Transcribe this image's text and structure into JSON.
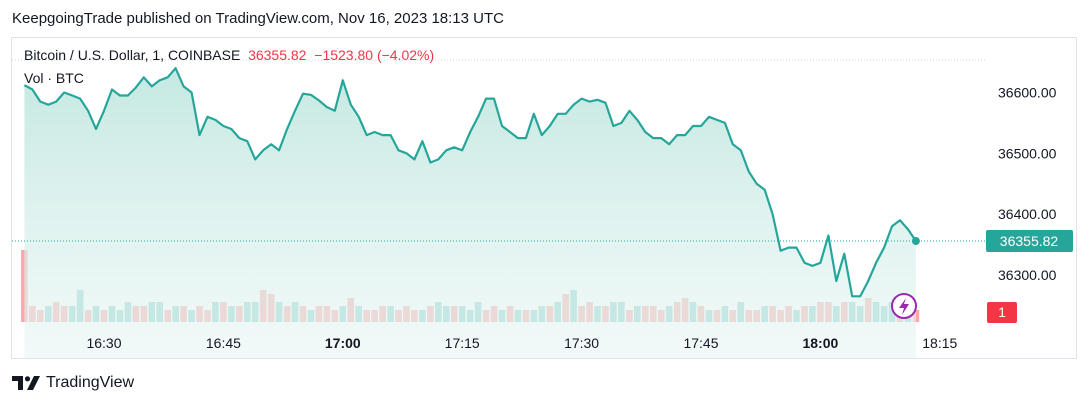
{
  "header": {
    "published_text": "KeepgoingTrade published on TradingView.com, Nov 16, 2023 18:13 UTC"
  },
  "legend": {
    "symbol": "Bitcoin / U.S. Dollar, 1, COINBASE",
    "last": "36355.82",
    "change": "−1523.80 (−4.02%)",
    "volume_label": "Vol · BTC"
  },
  "footer": {
    "brand": "TradingView",
    "logo_icon": "tradingview-logo-icon"
  },
  "badges": {
    "price_label": "36355.82",
    "volume_label": "1",
    "lightning_icon": "lightning-icon"
  },
  "colors": {
    "line": "#26a69a",
    "area_top": "#cdebe6",
    "up_volume": "#26a69a",
    "down_volume": "#ef5350",
    "badge_red": "#f23645"
  },
  "chart_data": {
    "type": "area",
    "title": "Bitcoin / U.S. Dollar, 1, COINBASE",
    "xlabel": "",
    "ylabel": "",
    "x_ticks": [
      {
        "label": "16:30",
        "t": 1.0
      },
      {
        "label": "16:45",
        "t": 16.0
      },
      {
        "label": "17:00",
        "t": 31.0,
        "bold": true
      },
      {
        "label": "17:15",
        "t": 46.0
      },
      {
        "label": "17:30",
        "t": 61.0
      },
      {
        "label": "17:45",
        "t": 76.0
      },
      {
        "label": "18:00",
        "t": 91.0,
        "bold": true
      },
      {
        "label": "18:15",
        "t": 106.0
      }
    ],
    "y_ticks": [
      36600,
      36500,
      36400,
      36300
    ],
    "ylim": [
      36225,
      36740
    ],
    "grid": false,
    "last_value": 36355.82,
    "x": [
      -9,
      -8,
      -7,
      -6,
      -5,
      -4,
      -3,
      -2,
      -1,
      0,
      1,
      2,
      3,
      4,
      5,
      6,
      7,
      8,
      9,
      10,
      11,
      12,
      13,
      14,
      15,
      16,
      17,
      18,
      19,
      20,
      21,
      22,
      23,
      24,
      25,
      26,
      27,
      28,
      29,
      30,
      31,
      32,
      33,
      34,
      35,
      36,
      37,
      38,
      39,
      40,
      41,
      42,
      43,
      44,
      45,
      46,
      47,
      48,
      49,
      50,
      51,
      52,
      53,
      54,
      55,
      56,
      57,
      58,
      59,
      60,
      61,
      62,
      63,
      64,
      65,
      66,
      67,
      68,
      69,
      70,
      71,
      72,
      73,
      74,
      75,
      76,
      77,
      78,
      79,
      80,
      81,
      82,
      83,
      84,
      85,
      86,
      87,
      88,
      89,
      90,
      91,
      92,
      93,
      94,
      95,
      96,
      97,
      98,
      99,
      100,
      101,
      102,
      103
    ],
    "values": [
      36612,
      36605,
      36585,
      36580,
      36585,
      36600,
      36595,
      36590,
      36570,
      36540,
      36570,
      36605,
      36595,
      36595,
      36608,
      36625,
      36610,
      36620,
      36625,
      36640,
      36610,
      36600,
      36530,
      36560,
      36555,
      36545,
      36540,
      36525,
      36520,
      36490,
      36505,
      36515,
      36505,
      36540,
      36570,
      36598,
      36596,
      36587,
      36576,
      36570,
      36620,
      36580,
      36560,
      36530,
      36535,
      36530,
      36530,
      36505,
      36500,
      36490,
      36520,
      36485,
      36490,
      36505,
      36510,
      36505,
      36535,
      36560,
      36590,
      36590,
      36545,
      36535,
      36525,
      36525,
      36565,
      36530,
      36545,
      36565,
      36565,
      36580,
      36590,
      36585,
      36588,
      36583,
      36545,
      36550,
      36570,
      36555,
      36535,
      36525,
      36525,
      36515,
      36530,
      36530,
      36545,
      36545,
      36560,
      36555,
      36550,
      36515,
      36505,
      36470,
      36450,
      36440,
      36400,
      36340,
      36345,
      36345,
      36320,
      36315,
      36320,
      36365,
      36290,
      36335,
      36265,
      36265,
      36290,
      36320,
      36345,
      36380,
      36390,
      36375,
      36355.82
    ],
    "volume": [
      18,
      4,
      3,
      4,
      5,
      4,
      4,
      8,
      3,
      4,
      3,
      4,
      3,
      5,
      4,
      4,
      5,
      5,
      3,
      4,
      4,
      3,
      4,
      3,
      5,
      5,
      4,
      4,
      5,
      5,
      8,
      7,
      5,
      4,
      5,
      4,
      3,
      4,
      4,
      3,
      4,
      6,
      4,
      3,
      3,
      4,
      4,
      3,
      4,
      3,
      3,
      4,
      5,
      4,
      4,
      4,
      3,
      5,
      3,
      4,
      3,
      4,
      3,
      3,
      3,
      4,
      4,
      5,
      7,
      8,
      4,
      5,
      4,
      4,
      5,
      5,
      3,
      4,
      4,
      4,
      3,
      4,
      5,
      6,
      5,
      4,
      3,
      3,
      4,
      3,
      5,
      3,
      3,
      4,
      4,
      3,
      4,
      3,
      4,
      4,
      5,
      5,
      4,
      5,
      5,
      4,
      6,
      5,
      4,
      5,
      3,
      3,
      3
    ],
    "volume_up": [
      false,
      false,
      false,
      true,
      false,
      false,
      true,
      true,
      false,
      true,
      false,
      true,
      true,
      true,
      false,
      false,
      true,
      true,
      false,
      true,
      false,
      true,
      false,
      false,
      true,
      false,
      true,
      false,
      true,
      true,
      false,
      false,
      true,
      false,
      true,
      false,
      true,
      false,
      false,
      false,
      true,
      false,
      true,
      false,
      false,
      false,
      true,
      false,
      false,
      false,
      true,
      false,
      true,
      true,
      false,
      true,
      true,
      true,
      false,
      false,
      true,
      false,
      true,
      false,
      true,
      true,
      false,
      true,
      false,
      true,
      false,
      false,
      true,
      false,
      true,
      true,
      false,
      true,
      false,
      false,
      false,
      true,
      false,
      false,
      true,
      false,
      true,
      false,
      true,
      false,
      true,
      false,
      false,
      true,
      false,
      false,
      false,
      true,
      false,
      true,
      false,
      false,
      true,
      false,
      true,
      true,
      false,
      true,
      true,
      true,
      false,
      true,
      false
    ]
  }
}
